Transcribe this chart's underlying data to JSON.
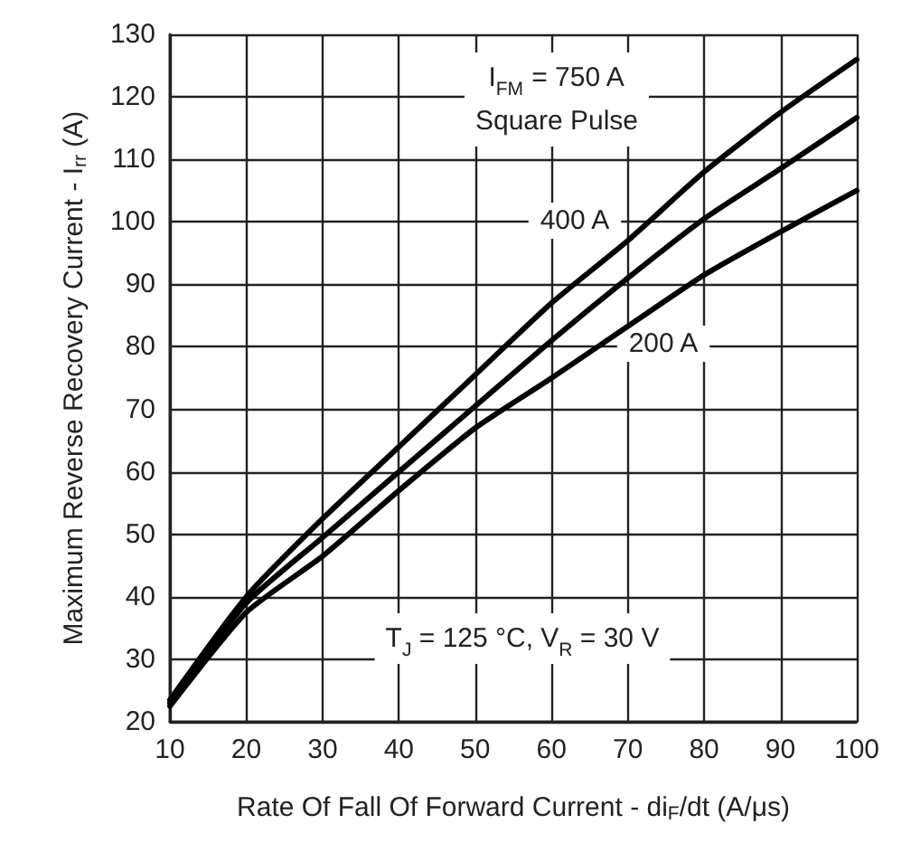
{
  "chart_data": {
    "type": "line",
    "xlabel": "Rate Of Fall Of Forward Current - di$_{F}$/dt (A/μs)",
    "ylabel": "Maximum Reverse Recovery Current - I$_{rr}$ (A)",
    "x": [
      10,
      20,
      30,
      40,
      50,
      60,
      70,
      80,
      90,
      100
    ],
    "series": [
      {
        "color": "#000000",
        "values": [
          23.5,
          40,
          52.5,
          64,
          75.5,
          87,
          97,
          108,
          117.5,
          126
        ]
      },
      {
        "color": "#000000",
        "values": [
          23,
          39,
          49.5,
          60,
          70.5,
          81,
          91,
          100.5,
          108.5,
          116.7
        ]
      },
      {
        "color": "#000000",
        "values": [
          22.5,
          37.5,
          46.5,
          57,
          67,
          75,
          83.3,
          91.5,
          98.4,
          105
        ]
      }
    ],
    "xlim": [
      10,
      100
    ],
    "xticks": [
      10,
      20,
      30,
      40,
      50,
      60,
      70,
      80,
      90,
      100
    ],
    "ylim": [
      20,
      130
    ],
    "yticks": [
      20,
      30,
      40,
      50,
      60,
      70,
      80,
      90,
      100,
      110,
      120,
      130
    ],
    "grid": true,
    "marker": "none",
    "line_style": "solid",
    "annotations": [
      "I$_{FM}$ = 750 A",
      "Square Pulse",
      "400 A",
      "200 A",
      "T$_{J}$ = 125 °C, V$_{R}$ = 30 V"
    ]
  }
}
